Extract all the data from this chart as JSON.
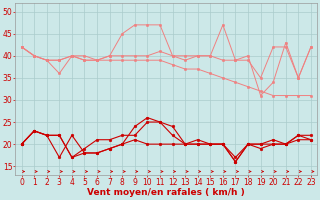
{
  "x": [
    0,
    1,
    2,
    3,
    4,
    5,
    6,
    7,
    8,
    9,
    10,
    11,
    12,
    13,
    14,
    15,
    16,
    17,
    18,
    19,
    20,
    21,
    22,
    23
  ],
  "series_light": [
    [
      42,
      40,
      39,
      39,
      40,
      40,
      39,
      40,
      40,
      40,
      40,
      41,
      40,
      40,
      40,
      40,
      39,
      39,
      39,
      35,
      42,
      42,
      35,
      42
    ],
    [
      42,
      40,
      39,
      36,
      40,
      39,
      39,
      40,
      45,
      47,
      47,
      47,
      40,
      39,
      40,
      40,
      47,
      39,
      40,
      31,
      34,
      43,
      35,
      42
    ],
    [
      42,
      40,
      39,
      39,
      40,
      39,
      39,
      39,
      39,
      39,
      39,
      39,
      38,
      37,
      37,
      36,
      35,
      34,
      33,
      32,
      31,
      31,
      31,
      31
    ]
  ],
  "series_dark": [
    [
      20,
      23,
      22,
      17,
      22,
      18,
      18,
      19,
      20,
      24,
      26,
      25,
      24,
      20,
      20,
      20,
      20,
      17,
      20,
      20,
      21,
      20,
      22,
      22
    ],
    [
      20,
      23,
      22,
      22,
      17,
      19,
      21,
      21,
      22,
      22,
      25,
      25,
      22,
      20,
      21,
      20,
      20,
      16,
      20,
      20,
      20,
      20,
      22,
      21
    ],
    [
      20,
      23,
      22,
      22,
      17,
      18,
      18,
      19,
      20,
      21,
      20,
      20,
      20,
      20,
      20,
      20,
      20,
      16,
      20,
      19,
      20,
      20,
      21,
      21
    ]
  ],
  "light_color": "#f08080",
  "dark_color": "#cc0000",
  "background_color": "#cce8e8",
  "grid_color": "#aacccc",
  "xlabel": "Vent moyen/en rafales ( km/h )",
  "ylim": [
    13,
    52
  ],
  "yticks": [
    15,
    20,
    25,
    30,
    35,
    40,
    45,
    50
  ],
  "xticks": [
    0,
    1,
    2,
    3,
    4,
    5,
    6,
    7,
    8,
    9,
    10,
    11,
    12,
    13,
    14,
    15,
    16,
    17,
    18,
    19,
    20,
    21,
    22,
    23
  ],
  "tick_fontsize": 5.5,
  "axis_fontsize": 6.5
}
